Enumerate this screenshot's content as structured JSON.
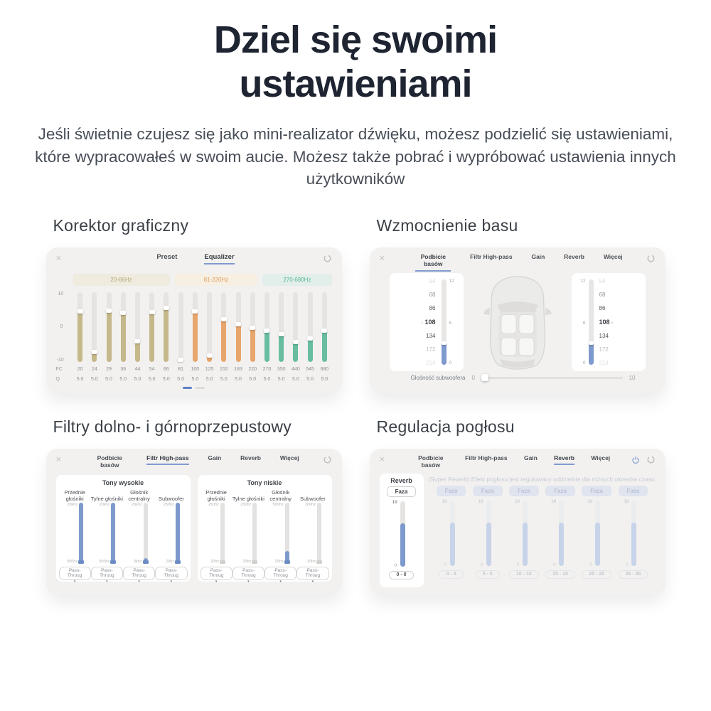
{
  "hero": {
    "title": "Dziel się swoimi ustawieniami",
    "description": "Jeśli świetnie czujesz się jako mini-realizator dźwięku, możesz podzielić się ustawieniami, które wypracowałeś w swoim aucie. Możesz także pobrać i wypróbować ustawienia innych użytkowników"
  },
  "icons": {
    "close_glyph": "×",
    "caret_glyph": "▾",
    "marker_left_glyph": "›",
    "marker_right_glyph": "‹"
  },
  "colors": {
    "accent_blue": "#7e99cc",
    "active_dash_blue": "#5d81c7",
    "band_khaki": "#c5b88a",
    "band_orange": "#e7a66c",
    "band_teal": "#68bda1"
  },
  "equalizer": {
    "heading": "Korektor graficzny",
    "tabs": [
      "Preset",
      "Equalizer"
    ],
    "active_tab": "Equalizer",
    "bands": [
      {
        "label": "20-66Hz"
      },
      {
        "label": "81-220Hz"
      },
      {
        "label": "270-680Hz"
      }
    ],
    "axis": {
      "max": "10",
      "mid": "0",
      "min": "-10",
      "fc": "FC",
      "q": "Q"
    },
    "sliders": [
      {
        "fc": "20",
        "q": "5.0",
        "fill": 75
      },
      {
        "fc": "24",
        "q": "5.0",
        "fill": 17
      },
      {
        "fc": "29",
        "q": "5.0",
        "fill": 76
      },
      {
        "fc": "36",
        "q": "5.0",
        "fill": 73
      },
      {
        "fc": "44",
        "q": "5.0",
        "fill": 32
      },
      {
        "fc": "54",
        "q": "5.0",
        "fill": 74
      },
      {
        "fc": "66",
        "q": "5.0",
        "fill": 80
      },
      {
        "fc": "81",
        "q": "5.0",
        "fill": 6
      },
      {
        "fc": "100",
        "q": "5.0",
        "fill": 75
      },
      {
        "fc": "125",
        "q": "5.0",
        "fill": 12
      },
      {
        "fc": "152",
        "q": "5.0",
        "fill": 64
      },
      {
        "fc": "183",
        "q": "5.0",
        "fill": 57
      },
      {
        "fc": "220",
        "q": "5.0",
        "fill": 52
      },
      {
        "fc": "270",
        "q": "5.0",
        "fill": 48
      },
      {
        "fc": "350",
        "q": "5.0",
        "fill": 42
      },
      {
        "fc": "440",
        "q": "5.0",
        "fill": 31
      },
      {
        "fc": "545",
        "q": "5.0",
        "fill": 36
      },
      {
        "fc": "680",
        "q": "5.0",
        "fill": 48
      }
    ],
    "pagination": {
      "active_page": 1,
      "total_pages": 2
    }
  },
  "bass": {
    "heading": "Wzmocnienie basu",
    "tabs": [
      "Podbicie basów",
      "Filtr High-pass",
      "Gain",
      "Reverb",
      "Więcej"
    ],
    "active_tab": "Podbicie basów",
    "left_channel": {
      "frequencies": [
        "54",
        "68",
        "86",
        "108",
        "134",
        "172",
        "214"
      ],
      "selected": "108",
      "scale": [
        "12",
        "6",
        "0"
      ],
      "fill": 27
    },
    "right_channel": {
      "frequencies": [
        "54",
        "68",
        "86",
        "108",
        "134",
        "172",
        "214"
      ],
      "selected": "108",
      "scale": [
        "12",
        "6",
        "0"
      ],
      "fill": 27
    },
    "subwoofer": {
      "label": "Głośność subwoofera",
      "min": "0",
      "max": "10",
      "value": 0
    }
  },
  "filters": {
    "heading": "Filtry dolno- i górnoprzepustowy",
    "tabs": [
      "Podbicie basów",
      "Filtr High-pass",
      "Gain",
      "Reverb",
      "Więcej"
    ],
    "active_tab": "Filtr High-pass",
    "groups": [
      {
        "title": "Tony wysokie",
        "channels": [
          {
            "name": "Przednie głośniki",
            "top": "20khz",
            "bottom": "500hz",
            "fill": 100,
            "button": "Pass-Throug"
          },
          {
            "name": "Tylne głośniki",
            "top": "20khz",
            "bottom": "500hz",
            "fill": 100,
            "button": "Pass-Throug"
          },
          {
            "name": "Głośnik centralny",
            "top": "20khz",
            "bottom": "3khz",
            "fill": 9,
            "button": "Pass-Throug"
          },
          {
            "name": "Subwoofer",
            "top": "250hz",
            "bottom": "20hz",
            "fill": 100,
            "button": "Pass-Throug"
          }
        ]
      },
      {
        "title": "Tony niskie",
        "channels": [
          {
            "name": "Przednie głośniki",
            "top": "250hz",
            "bottom": "20hz",
            "fill": 0,
            "button": "Pass-Throug"
          },
          {
            "name": "Tylne głośniki",
            "top": "250hz",
            "bottom": "20hz",
            "fill": 0,
            "button": "Pass-Throug"
          },
          {
            "name": "Głośnik centralny",
            "top": "500hz",
            "bottom": "20hz",
            "fill": 21,
            "button": "Pass-Throug"
          },
          {
            "name": "Subwoofer",
            "top": "200hz",
            "bottom": "20hz",
            "fill": 0,
            "button": "Pass-Throug"
          }
        ]
      }
    ]
  },
  "reverb": {
    "heading": "Regulacja pogłosu",
    "tabs": [
      "Podbicie basów",
      "Filtr High-pass",
      "Gain",
      "Reverb",
      "Więcej"
    ],
    "active_tab": "Reverb",
    "panel_label": "Reverb",
    "notice": "(Super Reverb) Efekt pogłosu jest regulowany oddzielnie dla różnych okresów czasu",
    "active_channel": {
      "phase_button": "Faza",
      "max": "10",
      "min": "0",
      "fill": 66,
      "range": "0 - 0"
    },
    "disabled_channels": [
      {
        "phase_button": "Faza",
        "max": "10",
        "min": "0",
        "fill": 66,
        "range": "0 - 0"
      },
      {
        "phase_button": "Faza",
        "max": "10",
        "min": "0",
        "fill": 66,
        "range": "5 - 5"
      },
      {
        "phase_button": "Faza",
        "max": "10",
        "min": "0",
        "fill": 66,
        "range": "10 - 10"
      },
      {
        "phase_button": "Faza",
        "max": "10",
        "min": "0",
        "fill": 66,
        "range": "15 - 15"
      },
      {
        "phase_button": "Faza",
        "max": "10",
        "min": "0",
        "fill": 66,
        "range": "25 - 25"
      },
      {
        "phase_button": "Faza",
        "max": "10",
        "min": "0",
        "fill": 66,
        "range": "35 - 35"
      }
    ]
  }
}
